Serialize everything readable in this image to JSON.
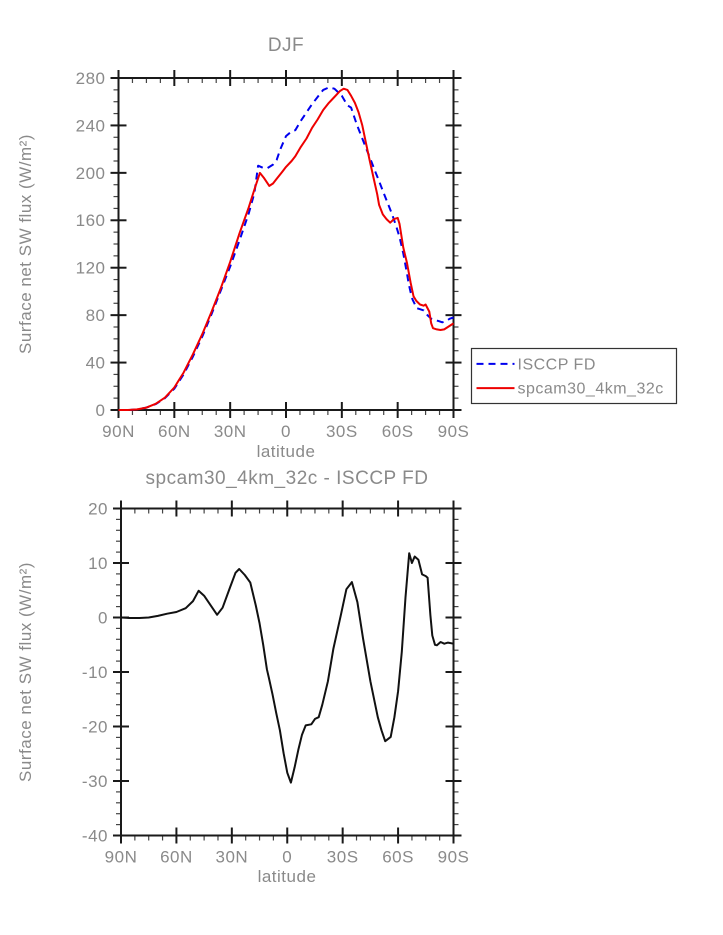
{
  "figure": {
    "background": "#ffffff",
    "text_color": "#8a8a8a",
    "axis_color": "#1a1a1a",
    "minor_tick_color": "#444444"
  },
  "chart_data": [
    {
      "type": "line",
      "title": "DJF",
      "xlabel": "latitude",
      "ylabel": "Surface net SW flux (W/m²)",
      "xlim": [
        90,
        -90
      ],
      "ylim": [
        0,
        280
      ],
      "grid": false,
      "x_tick_values": [
        90,
        60,
        30,
        0,
        -30,
        -60,
        -90
      ],
      "x_tick_labels": [
        "90N",
        "60N",
        "30N",
        "0",
        "30S",
        "60S",
        "90S"
      ],
      "x_minor_step": 7.5,
      "y_tick_values": [
        0,
        40,
        80,
        120,
        160,
        200,
        240,
        280
      ],
      "y_tick_labels": [
        "0",
        "40",
        "80",
        "120",
        "160",
        "200",
        "240",
        "280"
      ],
      "y_minor_step": 10,
      "legend": {
        "position": "outside-right-bottom",
        "entries": [
          "ISCCP FD",
          "spcam30_4km_32c"
        ]
      },
      "series": [
        {
          "name": "ISCCP FD",
          "color": "#0000ee",
          "style": "dashed",
          "x": [
            90,
            85,
            80,
            75,
            70,
            65,
            60,
            55,
            50,
            45,
            40,
            35,
            30,
            25,
            20,
            17,
            15,
            12,
            10,
            7,
            5,
            3,
            0,
            -3,
            -5,
            -8,
            -11,
            -14,
            -17,
            -20,
            -23,
            -26,
            -28,
            -30,
            -33,
            -35,
            -38,
            -40,
            -43,
            -45,
            -48,
            -50,
            -53,
            -55,
            -57,
            -59,
            -61,
            -63,
            -65,
            -66,
            -67,
            -68,
            -69,
            -70,
            -72,
            -74,
            -76,
            -78,
            -80,
            -82,
            -84,
            -86,
            -88,
            -90
          ],
          "y": [
            0,
            0,
            0.5,
            2,
            5,
            10,
            18,
            30,
            45,
            62,
            81,
            101,
            121,
            143,
            166,
            183,
            206,
            204,
            204,
            207,
            211,
            220,
            231,
            235,
            236,
            244,
            251,
            258,
            264,
            270,
            272,
            271,
            268,
            265,
            257,
            255,
            241,
            233,
            221,
            213,
            201,
            193,
            181,
            173,
            165,
            156,
            146,
            132,
            115,
            106,
            99,
            93,
            90,
            86,
            85,
            84,
            80,
            77,
            76,
            75,
            74,
            75,
            77,
            78
          ]
        },
        {
          "name": "spcam30_4km_32c",
          "color": "#ee0000",
          "style": "solid",
          "x": [
            90,
            85,
            80,
            75,
            70,
            65,
            60,
            55,
            50,
            45,
            40,
            35,
            30,
            25,
            20,
            17,
            14,
            12,
            9,
            7,
            5,
            2,
            0,
            -3,
            -5,
            -8,
            -11,
            -14,
            -17,
            -20,
            -23,
            -26,
            -29,
            -31,
            -33,
            -35,
            -37,
            -39,
            -41,
            -43,
            -45,
            -47,
            -49,
            -50,
            -52,
            -54,
            -56,
            -58,
            -60,
            -61,
            -63,
            -65,
            -67,
            -68.5,
            -70,
            -72,
            -74,
            -75,
            -76,
            -77,
            -78,
            -79,
            -81,
            -83,
            -85,
            -87,
            -90
          ],
          "y": [
            0,
            0,
            0.5,
            2,
            5.2,
            10.5,
            19,
            31.5,
            47,
            64,
            83,
            103,
            125,
            149,
            171,
            186,
            200,
            196,
            189,
            191,
            195,
            201,
            205,
            210,
            214,
            222,
            229,
            238,
            245,
            253,
            259,
            264,
            269,
            271,
            270,
            265,
            259,
            251,
            240,
            225,
            210,
            196,
            182,
            173,
            165,
            161,
            158,
            161,
            162,
            157,
            137,
            124,
            107,
            96,
            92,
            89,
            88,
            89,
            86,
            83,
            73,
            69,
            68,
            67.5,
            68,
            70,
            73
          ]
        }
      ]
    },
    {
      "type": "line",
      "title": "spcam30_4km_32c - ISCCP FD",
      "xlabel": "latitude",
      "ylabel": "Surface net SW flux (W/m²)",
      "xlim": [
        90,
        -90
      ],
      "ylim": [
        -40,
        20
      ],
      "grid": false,
      "x_tick_values": [
        90,
        60,
        30,
        0,
        -30,
        -60,
        -90
      ],
      "x_tick_labels": [
        "90N",
        "60N",
        "30N",
        "0",
        "30S",
        "60S",
        "90S"
      ],
      "x_minor_step": 7.5,
      "y_tick_values": [
        -40,
        -30,
        -20,
        -10,
        0,
        10,
        20
      ],
      "y_tick_labels": [
        "-40",
        "-30",
        "-20",
        "-10",
        "0",
        "10",
        "20"
      ],
      "y_minor_step": 2,
      "series": [
        {
          "name": "spcam30_4km_32c minus ISCCP FD",
          "color": "#111111",
          "style": "solid",
          "x": [
            90,
            85,
            80,
            75,
            70,
            65,
            60,
            55,
            51,
            48,
            45,
            41,
            38,
            35,
            31,
            28,
            26,
            23,
            20,
            17,
            15,
            13,
            11,
            10,
            8,
            6,
            4,
            2,
            0,
            -2,
            -4,
            -6,
            -8,
            -10,
            -13,
            -15,
            -17,
            -19,
            -22,
            -25,
            -29,
            -32,
            -35,
            -38,
            -41,
            -45,
            -49,
            -51,
            -53,
            -56,
            -58,
            -60,
            -62,
            -64,
            -66,
            -67.5,
            -69,
            -71,
            -73,
            -75,
            -76,
            -77.5,
            -78.5,
            -80,
            -81,
            -83,
            -85,
            -87,
            -90
          ],
          "y": [
            0,
            -0.1,
            -0.1,
            0,
            0.3,
            0.7,
            1.0,
            1.7,
            3.0,
            4.9,
            4.0,
            2.0,
            0.5,
            1.8,
            5.5,
            8.2,
            8.9,
            7.8,
            6.4,
            2.2,
            -1.0,
            -5.0,
            -9.5,
            -11.0,
            -14.1,
            -17.5,
            -20.7,
            -24.9,
            -28.5,
            -30.3,
            -27.5,
            -24.3,
            -21.5,
            -19.8,
            -19.6,
            -18.6,
            -18.3,
            -16.0,
            -11.7,
            -5.7,
            0.4,
            5.2,
            6.5,
            2.8,
            -3.8,
            -11.7,
            -18.3,
            -20.7,
            -22.7,
            -21.9,
            -18.3,
            -13.5,
            -6.3,
            3.7,
            11.8,
            10.0,
            11.2,
            10.6,
            7.9,
            7.6,
            7.3,
            0.4,
            -3.3,
            -5.0,
            -5.1,
            -4.5,
            -4.8,
            -4.6,
            -4.8
          ]
        }
      ]
    }
  ]
}
